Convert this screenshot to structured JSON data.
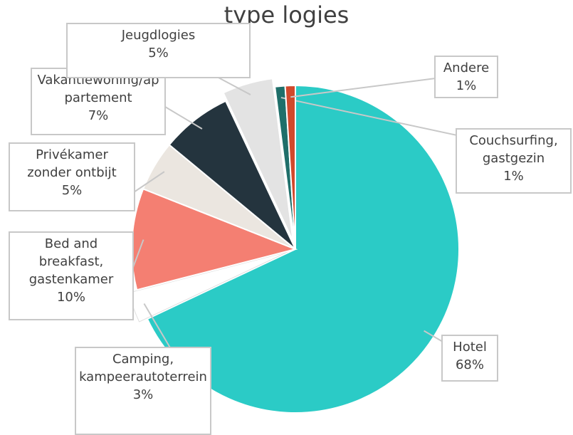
{
  "chart_data": {
    "type": "pie",
    "title": "type logies",
    "categories": [
      "Hotel",
      "Camping, kampeerautoterrein",
      "Bed and breakfast, gastenkamer",
      "Privékamer zonder ontbijt",
      "Vakantiewoning/appartement",
      "Jeugdlogies",
      "Couchsurfing, gastgezin",
      "Andere"
    ],
    "values": [
      68,
      3,
      10,
      5,
      7,
      5,
      1,
      1
    ],
    "value_labels": [
      "68%",
      "3%",
      "10%",
      "5%",
      "7%",
      "5%",
      "1%",
      "1%"
    ],
    "colors": [
      "#2bcbc6",
      "#ffffff",
      "#f47f72",
      "#ebe6e0",
      "#24343e",
      "#e3e3e3",
      "#1f6f6a",
      "#d1492c"
    ]
  }
}
